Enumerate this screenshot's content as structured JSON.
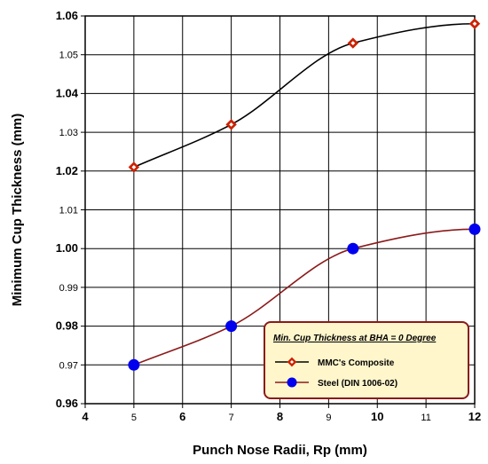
{
  "chart_data": {
    "type": "line",
    "xlabel": "Punch Nose Radii, Rp (mm)",
    "ylabel": "Minimum Cup Thickness (mm)",
    "xlim": [
      4,
      12
    ],
    "ylim": [
      0.96,
      1.06
    ],
    "x_ticks": [
      {
        "value": 4,
        "label": "4",
        "bold": true
      },
      {
        "value": 5,
        "label": "5",
        "bold": false
      },
      {
        "value": 6,
        "label": "6",
        "bold": true
      },
      {
        "value": 7,
        "label": "7",
        "bold": false
      },
      {
        "value": 8,
        "label": "8",
        "bold": true
      },
      {
        "value": 9,
        "label": "9",
        "bold": false
      },
      {
        "value": 10,
        "label": "10",
        "bold": true
      },
      {
        "value": 11,
        "label": "11",
        "bold": false
      },
      {
        "value": 12,
        "label": "12",
        "bold": true
      }
    ],
    "y_ticks": [
      {
        "value": 0.96,
        "label": "0.96",
        "bold": true
      },
      {
        "value": 0.97,
        "label": "0.97",
        "bold": false
      },
      {
        "value": 0.98,
        "label": "0.98",
        "bold": true
      },
      {
        "value": 0.99,
        "label": "0.99",
        "bold": false
      },
      {
        "value": 1.0,
        "label": "1.00",
        "bold": true
      },
      {
        "value": 1.01,
        "label": "1.01",
        "bold": false
      },
      {
        "value": 1.02,
        "label": "1.02",
        "bold": true
      },
      {
        "value": 1.03,
        "label": "1.03",
        "bold": false
      },
      {
        "value": 1.04,
        "label": "1.04",
        "bold": true
      },
      {
        "value": 1.05,
        "label": "1.05",
        "bold": false
      },
      {
        "value": 1.06,
        "label": "1.06",
        "bold": true
      }
    ],
    "grid": true,
    "legend": {
      "title": "Min. Cup Thickness at BHA = 0 Degree",
      "placement": "bottom-right"
    },
    "series": [
      {
        "name": "MMC's Composite",
        "marker": "diamond",
        "line_color": "#000000",
        "marker_color": "#cc2200",
        "x": [
          5,
          7,
          9.5,
          12
        ],
        "y": [
          1.021,
          1.032,
          1.053,
          1.058
        ]
      },
      {
        "name": "Steel (DIN 1006-02)",
        "marker": "circle",
        "line_color": "#8b1a1a",
        "marker_color": "#0000ee",
        "x": [
          5,
          7,
          9.5,
          12
        ],
        "y": [
          0.97,
          0.98,
          1.0,
          1.005
        ]
      }
    ]
  },
  "colors": {
    "legend_fill": "#fff6cc",
    "legend_border": "#8b1a1a",
    "grid": "#000000"
  }
}
